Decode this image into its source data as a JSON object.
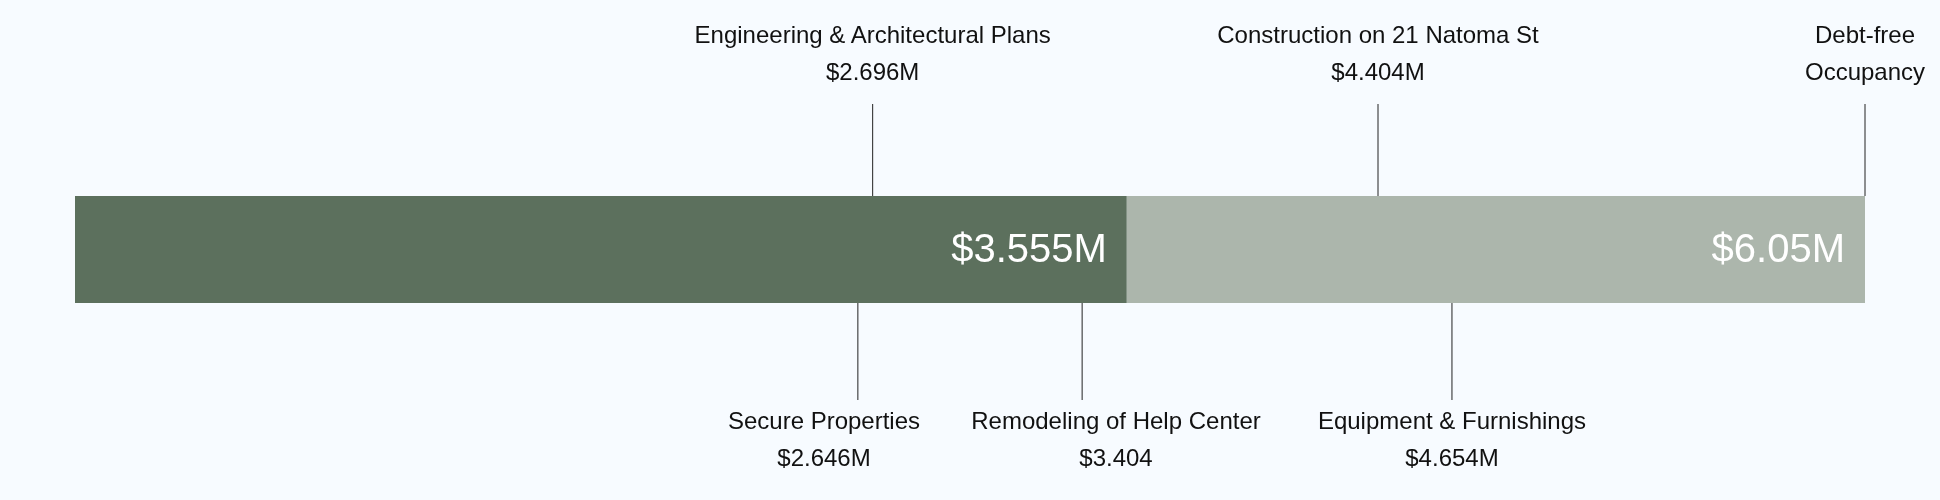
{
  "chart_data": {
    "type": "bar",
    "orientation": "horizontal",
    "stacked": true,
    "categories": [
      null
    ],
    "series": [
      {
        "color": "#5c705d",
        "values": [
          3.555
        ],
        "value_labels": [
          "$3.555M"
        ]
      },
      {
        "color": "#acb6ac",
        "values": [
          2.495
        ]
      }
    ],
    "totals": [
      "$6.05M"
    ],
    "xlim": [
      0,
      6.05
    ],
    "tick_labels": false,
    "ref_lines": [
      {
        "axis": "x",
        "value": 2.646,
        "label": "Secure Properties\n$2.646M"
      },
      {
        "axis": "x",
        "value": 2.696,
        "label": "Engineering & Architectural Plans\n$2.696M"
      },
      {
        "axis": "x",
        "value": 3.404,
        "label": "Remodeling of Help Center\n$3.404"
      },
      {
        "axis": "x",
        "value": 4.404,
        "label": "Construction on 21 Natoma St\n$4.404M"
      },
      {
        "axis": "x",
        "value": 4.654,
        "label": "Equipment & Furnishings\n$4.654M"
      },
      {
        "axis": "x",
        "value": 6.05,
        "label": "Debt-free\nOccupancy"
      }
    ]
  }
}
